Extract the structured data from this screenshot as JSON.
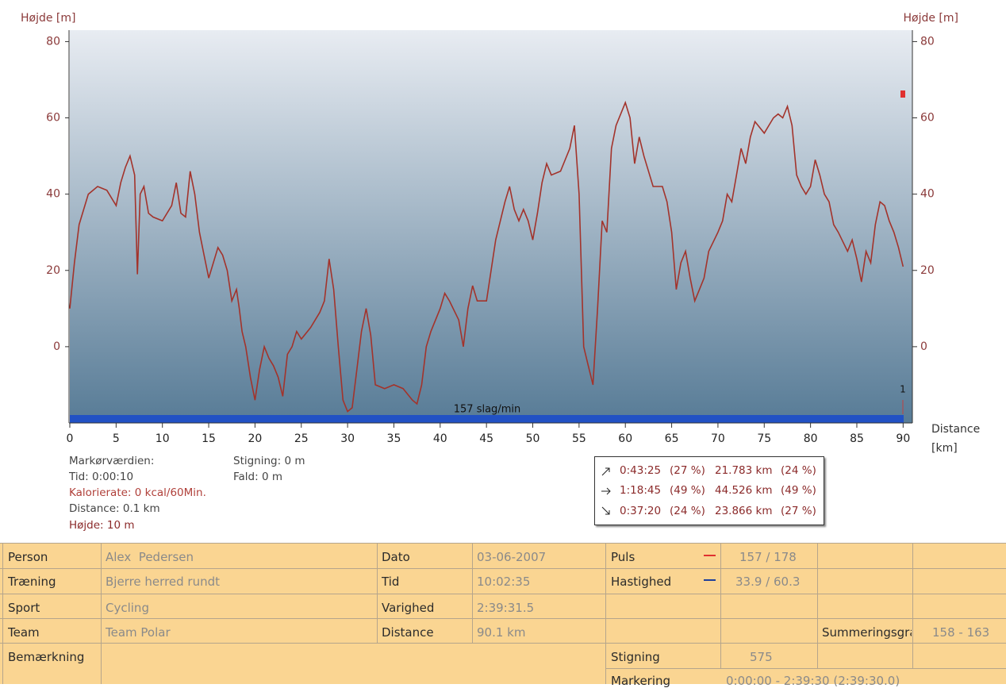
{
  "chart_data": {
    "type": "line",
    "y_label": "Højde [m]",
    "y2_label": "Højde [m]",
    "x_label": [
      "Distance",
      "[km]"
    ],
    "annotations": [
      "157 slag/min",
      "1"
    ],
    "xlim": [
      0,
      91
    ],
    "xticks": [
      0,
      5,
      10,
      15,
      20,
      25,
      30,
      35,
      40,
      45,
      50,
      55,
      60,
      65,
      70,
      75,
      80,
      85,
      90
    ],
    "ylim": [
      -20,
      83
    ],
    "yticks": [
      0,
      20,
      40,
      60,
      80
    ],
    "y2lim": [
      -20,
      83
    ],
    "y2ticks": [
      0,
      20,
      40,
      60,
      80
    ],
    "x": [
      0,
      0.5,
      1,
      1.5,
      2,
      3,
      4,
      5,
      5.5,
      6,
      6.5,
      7,
      7.3,
      7.6,
      8,
      8.5,
      9,
      10,
      11,
      11.5,
      12,
      12.5,
      13,
      13.5,
      14,
      14.5,
      15,
      15.5,
      16,
      16.5,
      17,
      17.5,
      18,
      18.3,
      18.6,
      19,
      19.5,
      20,
      20.5,
      21,
      21.5,
      22,
      22.5,
      23,
      23.5,
      24,
      24.5,
      25,
      26,
      27,
      27.5,
      28,
      28.5,
      29,
      29.5,
      30,
      30.5,
      31,
      31.5,
      32,
      32.5,
      33,
      34,
      35,
      36,
      37,
      37.5,
      38,
      38.5,
      39,
      40,
      40.5,
      41,
      42,
      42.5,
      43,
      43.5,
      44,
      45,
      45.5,
      46,
      47,
      47.5,
      48,
      48.5,
      49,
      49.5,
      50,
      50.5,
      51,
      51.5,
      52,
      53,
      54,
      54.5,
      55,
      55.5,
      56,
      56.5,
      57,
      57.5,
      58,
      58.5,
      59,
      60,
      60.5,
      61,
      61.5,
      62,
      63,
      64,
      64.5,
      65,
      65.5,
      66,
      66.5,
      67,
      67.5,
      68,
      68.5,
      69,
      70,
      70.5,
      71,
      71.5,
      72,
      72.5,
      73,
      73.5,
      74,
      75,
      75.5,
      76,
      76.5,
      77,
      77.5,
      78,
      78.5,
      79,
      79.5,
      80,
      80.5,
      81,
      81.5,
      82,
      82.5,
      83,
      84,
      84.5,
      85,
      85.5,
      86,
      86.5,
      87,
      87.5,
      88,
      88.5,
      89,
      89.5,
      90
    ],
    "series": [
      {
        "color": "#a3332b",
        "values": [
          10,
          22,
          32,
          36,
          40,
          42,
          41,
          37,
          43,
          47,
          50,
          45,
          19,
          40,
          42,
          35,
          34,
          33,
          37,
          43,
          35,
          34,
          46,
          40,
          30,
          24,
          18,
          22,
          26,
          24,
          20,
          12,
          15,
          10,
          4,
          0,
          -8,
          -14,
          -6,
          0,
          -3,
          -5,
          -8,
          -13,
          -2,
          0,
          4,
          2,
          5,
          9,
          12,
          23,
          15,
          0,
          -14,
          -17,
          -16,
          -6,
          4,
          10,
          3,
          -10,
          -11,
          -10,
          -11,
          -14,
          -15,
          -10,
          0,
          4,
          10,
          14,
          12,
          7,
          0,
          10,
          16,
          12,
          12,
          20,
          28,
          38,
          42,
          36,
          33,
          36,
          33,
          28,
          35,
          43,
          48,
          45,
          46,
          52,
          58,
          40,
          0,
          -5,
          -10,
          10,
          33,
          30,
          52,
          58,
          64,
          60,
          48,
          55,
          50,
          42,
          42,
          38,
          30,
          15,
          22,
          25,
          18,
          12,
          15,
          18,
          25,
          30,
          33,
          40,
          38,
          45,
          52,
          48,
          55,
          59,
          56,
          58,
          60,
          61,
          60,
          63,
          58,
          45,
          42,
          40,
          42,
          49,
          45,
          40,
          38,
          32,
          30,
          25,
          28,
          23,
          17,
          25,
          22,
          32,
          38,
          37,
          33,
          30,
          26,
          21
        ]
      }
    ]
  },
  "cursor": [
    "Markørværdien:",
    "Tid: 0:00:10",
    "Kalorierate: 0 kcal/60Min.",
    "Distance: 0.1 km",
    "Højde: 10 m"
  ],
  "climb": [
    "Stigning: 0 m",
    "Fald: 0 m"
  ],
  "summary": [
    [
      "0:43:25",
      "(27 %)",
      "21.783 km",
      "(24 %)"
    ],
    [
      "1:18:45",
      "(49 %)",
      "44.526 km",
      "(49 %)"
    ],
    [
      "0:37:20",
      "(24 %)",
      "23.866 km",
      "(27 %)"
    ]
  ],
  "table": {
    "rows": [
      [
        "Person",
        "Alex  Pedersen",
        "Dato",
        "03-06-2007",
        "Puls",
        "157 / 178"
      ],
      [
        "Træning",
        "Bjerre herred rundt",
        "Tid",
        "10:02:35",
        "Hastighed",
        "33.9 / 60.3"
      ],
      [
        "Sport",
        "Cycling",
        "Varighed",
        "2:39:31.5"
      ],
      [
        "Team",
        "Team Polar",
        "Distance",
        "90.1 km",
        "Summeringsgra",
        "158 - 163"
      ],
      [
        "Bemærkning",
        "Stigning",
        "575"
      ],
      [
        "Markering",
        "0:00:00 - 2:39:30 (2:39:30.0)"
      ]
    ]
  }
}
